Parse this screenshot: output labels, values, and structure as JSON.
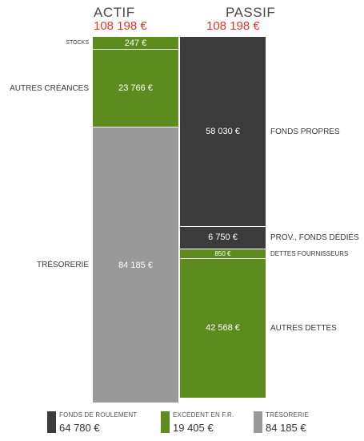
{
  "chart_data": {
    "type": "bar",
    "actif": {
      "title": "ACTIF",
      "total": "108 198 €",
      "segments": [
        {
          "name": "STOCKS",
          "value": 247,
          "display": "247 €",
          "color": "#5d8c1e"
        },
        {
          "name": "AUTRES CRÉANCES",
          "value": 23766,
          "display": "23 766 €",
          "color": "#5d8c1e"
        },
        {
          "name": "TRÉSORERIE",
          "value": 84185,
          "display": "84 185 €",
          "color": "#999999"
        }
      ]
    },
    "passif": {
      "title": "PASSIF",
      "total": "108 198 €",
      "segments": [
        {
          "name": "FONDS PROPRES",
          "value": 58030,
          "display": "58 030 €",
          "color": "#3b3b3b"
        },
        {
          "name": "PROV., FONDS DÉDIÉS",
          "value": 6750,
          "display": "6 750 €",
          "color": "#3b3b3b"
        },
        {
          "name": "DETTES FOURNISSEURS",
          "value": 850,
          "display": "850 €",
          "color": "#5d8c1e"
        },
        {
          "name": "AUTRES DETTES",
          "value": 42568,
          "display": "42 568 €",
          "color": "#5d8c1e"
        }
      ]
    },
    "legend": [
      {
        "label": "FONDS DE ROULEMENT",
        "value": "64 780 €",
        "color": "#3b3b3b"
      },
      {
        "label": "EXCÉDENT EN F.R.",
        "value": "19 405 €",
        "color": "#5d8c1e"
      },
      {
        "label": "TRÉSORERIE",
        "value": "84 185 €",
        "color": "#999999"
      }
    ]
  }
}
